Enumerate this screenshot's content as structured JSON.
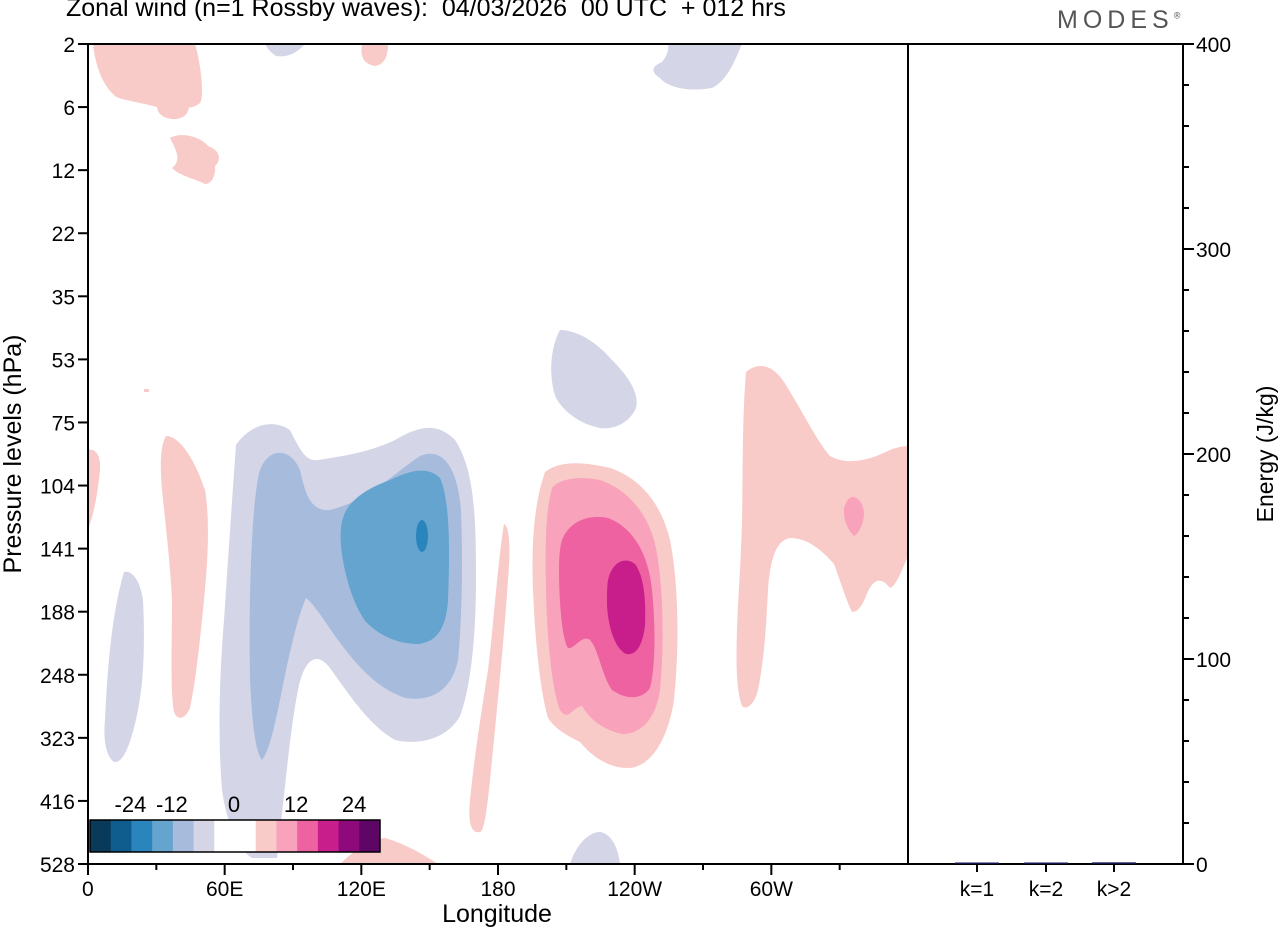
{
  "header": {
    "title": "Zonal wind (n=1 Rossby waves):  04/03/2026  00 UTC  + 012 hrs",
    "brand": "MODES",
    "brand_mark": "®"
  },
  "chart_data": [
    {
      "type": "heatmap",
      "title": "Zonal wind (n=1 Rossby waves):  04/03/2026  00 UTC  + 012 hrs",
      "xlabel": "Longitude",
      "ylabel": "Pressure levels (hPa)",
      "x_ticks": [
        "0",
        "60E",
        "120E",
        "180",
        "120W",
        "60W"
      ],
      "x_tick_values": [
        0,
        60,
        120,
        180,
        240,
        300
      ],
      "xlim": [
        0,
        360
      ],
      "y_ticks": [
        "2",
        "6",
        "12",
        "22",
        "35",
        "53",
        "75",
        "104",
        "141",
        "188",
        "248",
        "323",
        "416",
        "528"
      ],
      "colorbar": {
        "tick_labels": [
          "-24",
          "-12",
          "0",
          "12",
          "24"
        ],
        "colors": [
          "#0a3a5a",
          "#0e5d8e",
          "#2a85bd",
          "#64a4cf",
          "#a7bcdc",
          "#d4d6e8",
          "#ffffff",
          "#ffffff",
          "#f9cbc8",
          "#f8a3bb",
          "#ee62a2",
          "#c71e8b",
          "#8e0a7a",
          "#5e0665"
        ]
      },
      "features": [
        {
          "label": "upper-left positive lobe",
          "sign": "+",
          "level": 1,
          "lon": [
            2,
            50
          ],
          "p": [
            2,
            6
          ]
        },
        {
          "label": "small positive patch",
          "sign": "+",
          "level": 1,
          "lon": [
            36,
            58
          ],
          "p": [
            9,
            13
          ]
        },
        {
          "label": "west negative column",
          "sign": "-",
          "level": 1,
          "lon": [
            12,
            24
          ],
          "p": [
            150,
            330
          ]
        },
        {
          "label": "west positive column",
          "sign": "+",
          "level": 1,
          "lon": [
            32,
            52
          ],
          "p": [
            80,
            300
          ]
        },
        {
          "label": "main negative wave",
          "sign": "-",
          "level": 4,
          "lon": [
            65,
            165
          ],
          "p": [
            75,
            380
          ],
          "min_value": -21
        },
        {
          "label": "upper negative blob",
          "sign": "-",
          "level": 1,
          "lon": [
            203,
            240
          ],
          "p": [
            45,
            85
          ]
        },
        {
          "label": "dateline positive strand",
          "sign": "+",
          "level": 1,
          "lon": [
            168,
            185
          ],
          "p": [
            115,
            525
          ]
        },
        {
          "label": "main positive wave",
          "sign": "+",
          "level": 4,
          "lon": [
            195,
            258
          ],
          "p": [
            95,
            350
          ],
          "max_value": 21
        },
        {
          "label": "eastern positive band",
          "sign": "+",
          "level": 2,
          "lon": [
            285,
            360
          ],
          "p": [
            50,
            240
          ]
        }
      ]
    },
    {
      "type": "bar",
      "ylabel": "Energy (J/kg)",
      "categories": [
        "k=1",
        "k=2",
        "k>2"
      ],
      "values": [
        0.6,
        0.4,
        0.8
      ],
      "ylim": [
        0,
        400
      ],
      "y_ticks": [
        "0",
        "100",
        "200",
        "300",
        "400"
      ]
    }
  ]
}
